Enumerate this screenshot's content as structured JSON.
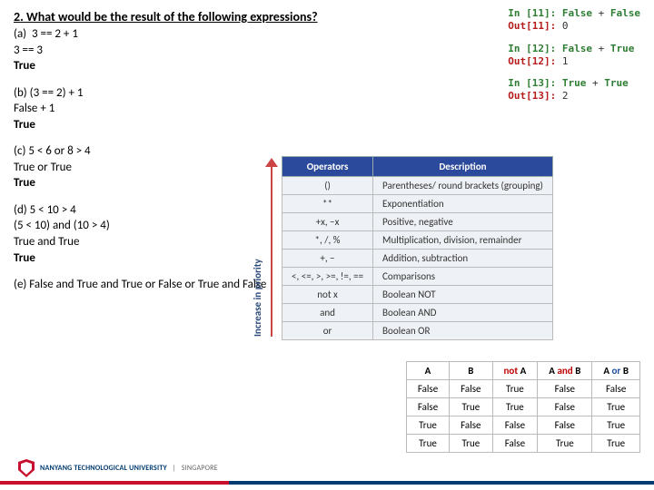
{
  "question": {
    "title": "2. What would be the result of the following expressions?",
    "parts": [
      {
        "id": "a",
        "lines": [
          "(a)  3 == 2 + 1",
          "3 == 3",
          "True"
        ],
        "bold_last": true
      },
      {
        "id": "b",
        "lines": [
          "(b) (3 == 2) + 1",
          "False + 1",
          "True"
        ],
        "bold_last": true
      },
      {
        "id": "c",
        "lines": [
          "(c) 5 < 6 or 8 > 4",
          "True or True",
          "True"
        ],
        "bold_last": true
      },
      {
        "id": "d",
        "lines": [
          "(d) 5 < 10 > 4",
          "(5 < 10) and (10 > 4)",
          "True and True",
          "True"
        ],
        "bold_last": true
      },
      {
        "id": "e",
        "lines": [
          "(e) False and True and True or False or True and False"
        ],
        "bold_last": false
      }
    ]
  },
  "code_cells": [
    {
      "in_n": "11",
      "in_code": "False + False",
      "out_n": "11",
      "out_val": "0"
    },
    {
      "in_n": "12",
      "in_code": "False + True",
      "out_n": "12",
      "out_val": "1"
    },
    {
      "in_n": "13",
      "in_code": "True + True",
      "out_n": "13",
      "out_val": "2"
    }
  ],
  "operators": {
    "priority_label": "Increase in priority",
    "headers": [
      "Operators",
      "Description"
    ],
    "rows": [
      [
        "()",
        "Parentheses/ round brackets (grouping)"
      ],
      [
        "**",
        "Exponentiation"
      ],
      [
        "+x, −x",
        "Positive, negative"
      ],
      [
        "*, /, %",
        "Multiplication, division, remainder"
      ],
      [
        "+, −",
        "Addition, subtraction"
      ],
      [
        "<, <=, >, >=, !=, ==",
        "Comparisons"
      ],
      [
        "not x",
        "Boolean NOT"
      ],
      [
        "and",
        "Boolean AND"
      ],
      [
        "or",
        "Boolean OR"
      ]
    ],
    "header_bg": "#2b4a9b",
    "row_bg": "#eef1f5",
    "arrow_color": "#c44"
  },
  "truth_table": {
    "headers": [
      {
        "text": "A",
        "cls": ""
      },
      {
        "text": "B",
        "cls": ""
      },
      {
        "text": "not A",
        "cls": "red"
      },
      {
        "text": "A and B",
        "cls": "red"
      },
      {
        "text": "A or B",
        "cls": "blue"
      }
    ],
    "rows": [
      [
        "False",
        "False",
        "True",
        "False",
        "False"
      ],
      [
        "False",
        "True",
        "True",
        "False",
        "True"
      ],
      [
        "True",
        "False",
        "False",
        "False",
        "True"
      ],
      [
        "True",
        "True",
        "False",
        "True",
        "True"
      ]
    ]
  },
  "footer": {
    "university": "NANYANG TECHNOLOGICAL UNIVERSITY",
    "tag": "SINGAPORE"
  }
}
